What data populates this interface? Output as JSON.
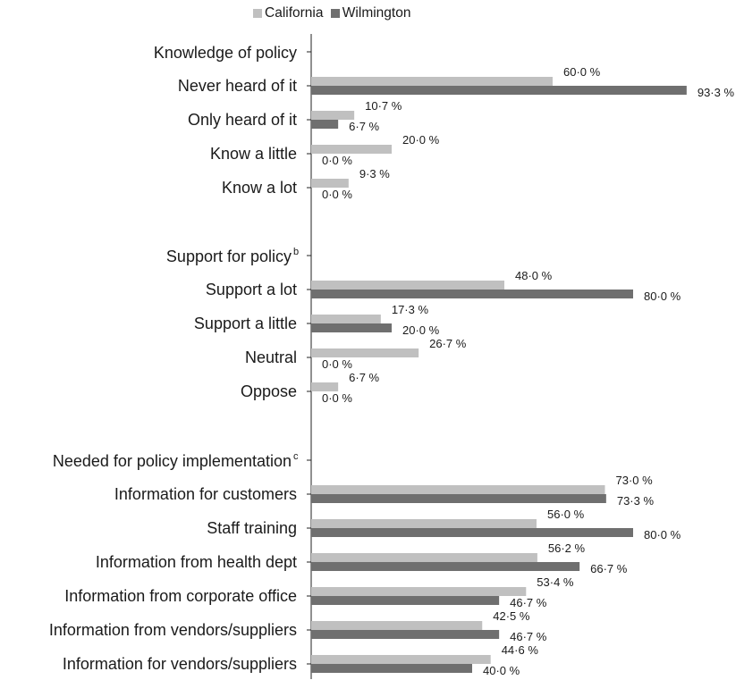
{
  "chart_data": {
    "type": "bar",
    "orientation": "horizontal",
    "legend": {
      "position": "top",
      "entries": [
        {
          "name": "California",
          "color": "#c0c0c0"
        },
        {
          "name": "Wilmington",
          "color": "#6f6f6f"
        }
      ]
    },
    "x_range": [
      0,
      100
    ],
    "value_format": "{v} %",
    "decimal_mark": "·",
    "grid": false,
    "groups": [
      {
        "header": "Knowledge of policy",
        "header_sup": "",
        "rows": [
          {
            "label": "Never heard of it",
            "california": 60.0,
            "wilmington": 93.3
          },
          {
            "label": "Only heard of it",
            "california": 10.7,
            "wilmington": 6.7
          },
          {
            "label": "Know a little",
            "california": 20.0,
            "wilmington": 0.0
          },
          {
            "label": "Know a lot",
            "california": 9.3,
            "wilmington": 0.0
          }
        ]
      },
      {
        "header": "Support for policy",
        "header_sup": "b",
        "rows": [
          {
            "label": "Support a lot",
            "california": 48.0,
            "wilmington": 80.0
          },
          {
            "label": "Support a little",
            "california": 17.3,
            "wilmington": 20.0
          },
          {
            "label": "Neutral",
            "california": 26.7,
            "wilmington": 0.0
          },
          {
            "label": "Oppose",
            "california": 6.7,
            "wilmington": 0.0
          }
        ]
      },
      {
        "header": "Needed for policy implementation",
        "header_sup": "c",
        "rows": [
          {
            "label": "Information for customers",
            "california": 73.0,
            "wilmington": 73.3
          },
          {
            "label": "Staff training",
            "california": 56.0,
            "wilmington": 80.0
          },
          {
            "label": "Information from health dept",
            "california": 56.2,
            "wilmington": 66.7
          },
          {
            "label": "Information from corporate office",
            "california": 53.4,
            "wilmington": 46.7
          },
          {
            "label": "Information from vendors/suppliers",
            "california": 42.5,
            "wilmington": 46.7
          },
          {
            "label": "Information for vendors/suppliers",
            "california": 44.6,
            "wilmington": 40.0
          }
        ]
      }
    ]
  }
}
